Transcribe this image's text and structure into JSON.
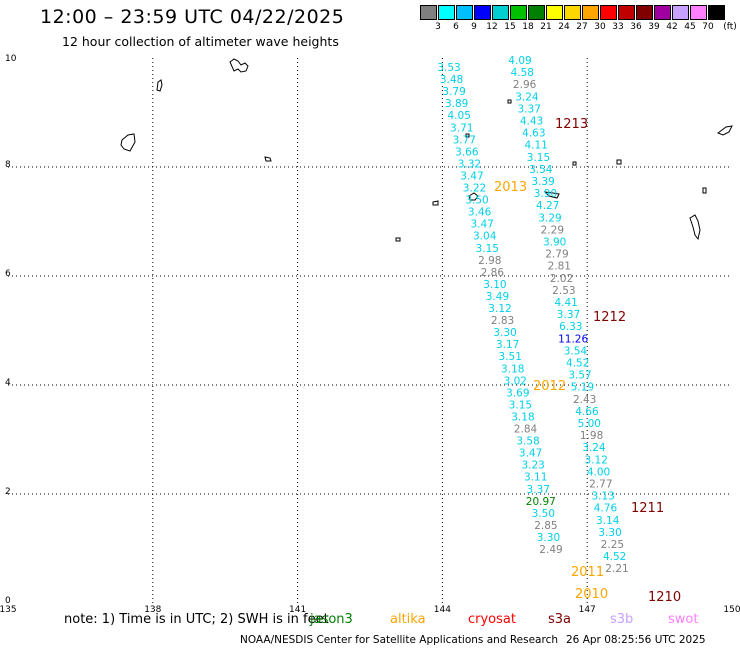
{
  "header": {
    "title": "12:00 – 23:59 UTC 04/22/2025",
    "subtitle": "12 hour collection of altimeter wave heights"
  },
  "legend": {
    "colors": [
      "#808080",
      "#00ffff",
      "#00bfff",
      "#0000ff",
      "#00ced1",
      "#00c000",
      "#008000",
      "#ffff00",
      "#ffd700",
      "#ffa500",
      "#ff0000",
      "#c00000",
      "#800000",
      "#a000a0",
      "#c8a0ff",
      "#ff80ff",
      "#000000"
    ],
    "labels": [
      "3",
      "6",
      "9",
      "12",
      "15",
      "18",
      "21",
      "24",
      "27",
      "30",
      "33",
      "36",
      "39",
      "42",
      "45",
      "70"
    ],
    "unit": "(ft)"
  },
  "axes": {
    "x_ticks": [
      "135",
      "138",
      "141",
      "144",
      "147",
      "150"
    ],
    "y_ticks": [
      "10",
      "8",
      "6",
      "4",
      "2",
      "0"
    ]
  },
  "track_data": {
    "columns": [
      {
        "start": 0.86,
        "values": [
          "3.53",
          "3.48",
          "3.79",
          "3.89",
          "4.05",
          "3.71",
          "3.77",
          "3.66",
          "3.32",
          "3.47",
          "3.22",
          "3.50",
          "3.46",
          "3.47",
          "3.04",
          "3.15",
          "2.98",
          "2.86",
          "3.10",
          "3.49",
          "3.12",
          "2.83",
          "3.30",
          "3.17",
          "3.51",
          "3.18",
          "3.02",
          "3.69",
          "3.15",
          "3.18",
          "2.84",
          "3.58",
          "3.47",
          "3.23",
          "3.11",
          "3.37",
          "20.97",
          "3.50",
          "2.85",
          "3.30",
          "2.49"
        ]
      },
      {
        "start": 0.96,
        "values": [
          "4.09",
          "4.58",
          "2.96",
          "3.24",
          "3.37",
          "4.43",
          "4.63",
          "4.11",
          "3.15",
          "3.54",
          "3.39",
          "3.90",
          "4.27",
          "3.29",
          "2.29",
          "3.90",
          "2.79",
          "2.81",
          "2.02",
          "2.53",
          "4.41",
          "3.37",
          "6.33",
          "11.26",
          "3.54",
          "4.52",
          "3.57",
          "5.19",
          "2.43",
          "4.66",
          "5.00",
          "1.98",
          "3.24",
          "3.12",
          "4.00",
          "2.77",
          "3.13",
          "4.76",
          "3.14",
          "3.30",
          "2.25",
          "4.52",
          "2.21"
        ]
      }
    ],
    "labels": [
      {
        "text": "1213",
        "color": "#800000"
      },
      {
        "text": "2013",
        "color": "#ffa500"
      },
      {
        "text": "1212",
        "color": "#800000"
      },
      {
        "text": "2012",
        "color": "#ffa500"
      },
      {
        "text": "1211",
        "color": "#800000"
      },
      {
        "text": "2011",
        "color": "#ffa500"
      },
      {
        "text": "2010",
        "color": "#ffa500"
      },
      {
        "text": "1210",
        "color": "#800000"
      }
    ]
  },
  "footer": {
    "note": "note:  1) Time is in UTC; 2) SWH is in feet",
    "satellites": [
      {
        "name": "jason3",
        "color": "#008000"
      },
      {
        "name": "altika",
        "color": "#ffa500"
      },
      {
        "name": "cryosat",
        "color": "#ff0000"
      },
      {
        "name": "s3a",
        "color": "#800000"
      },
      {
        "name": "s3b",
        "color": "#c8a0ff"
      },
      {
        "name": "swot",
        "color": "#ff80ff"
      }
    ],
    "credit": "NOAA/NESDIS Center for Satellite Applications and Research",
    "timestamp": "26 Apr 08:25:56 UTC 2025"
  }
}
